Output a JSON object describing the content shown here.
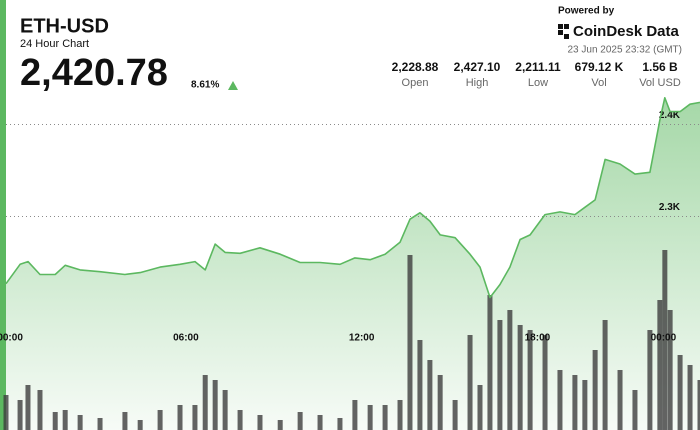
{
  "chart_data": {
    "type": "line",
    "title": "ETH-USD",
    "subtitle": "24 Hour Chart",
    "price": "2,420.78",
    "change": "8.61%",
    "powered_by": "Powered by",
    "brand": "CoinDesk Data",
    "timestamp": "23 Jun 2025 23:32 (GMT)",
    "stats": [
      {
        "value": "2,228.88",
        "label": "Open"
      },
      {
        "value": "2,427.10",
        "label": "High"
      },
      {
        "value": "2,211.11",
        "label": "Low"
      },
      {
        "value": "679.12 K",
        "label": "Vol"
      },
      {
        "value": "1.56 B",
        "label": "Vol USD"
      }
    ],
    "x": [
      -0.14,
      0.34,
      0.61,
      1.02,
      1.54,
      1.88,
      2.39,
      3.07,
      3.92,
      4.44,
      5.12,
      5.8,
      6.31,
      6.66,
      7.0,
      7.34,
      7.85,
      8.53,
      9.22,
      9.9,
      10.58,
      11.26,
      11.77,
      12.29,
      12.8,
      13.31,
      13.65,
      13.99,
      14.33,
      14.68,
      15.19,
      15.7,
      16.04,
      16.38,
      16.72,
      17.06,
      17.41,
      17.75,
      18.26,
      18.77,
      19.28,
      19.62,
      19.97,
      20.31,
      20.82,
      21.33,
      21.84,
      22.18,
      22.35,
      22.53,
      22.87,
      23.21,
      23.55
    ],
    "series": [
      {
        "color": "#5cb860",
        "values": [
          2227,
          2248,
          2251,
          2237,
          2237,
          2247,
          2242,
          2240,
          2237,
          2239,
          2245,
          2248,
          2251,
          2242,
          2270,
          2261,
          2260,
          2266,
          2259,
          2250,
          2250,
          2248,
          2255,
          2253,
          2259,
          2272,
          2297,
          2304,
          2295,
          2280,
          2277,
          2259,
          2245,
          2212,
          2226,
          2245,
          2275,
          2280,
          2302,
          2305,
          2302,
          2310,
          2318,
          2362,
          2357,
          2346,
          2348,
          2405,
          2429,
          2414,
          2414,
          2422,
          2424
        ]
      },
      {
        "color": "#3d3d3d",
        "axis": "y2",
        "values": [
          35,
          30,
          45,
          40,
          18,
          20,
          15,
          12,
          18,
          10,
          20,
          25,
          25,
          55,
          50,
          40,
          20,
          15,
          10,
          18,
          15,
          12,
          30,
          25,
          25,
          30,
          175,
          90,
          70,
          55,
          30,
          95,
          45,
          135,
          110,
          120,
          105,
          100,
          95,
          60,
          55,
          50,
          80,
          110,
          60,
          40,
          100,
          130,
          180,
          120,
          75,
          65,
          50
        ]
      }
    ],
    "xlim": [
      -0.14,
      23.55
    ],
    "xticks": [
      {
        "value": 0,
        "label": "00:00"
      },
      {
        "value": 6,
        "label": "06:00"
      },
      {
        "value": 12,
        "label": "12:00"
      },
      {
        "value": 18,
        "label": "18:00"
      },
      {
        "value": 22.3,
        "label": "00:00"
      }
    ],
    "ylim": [
      2068,
      2432
    ],
    "yticks": [
      {
        "value": 2300,
        "label": "2.3K"
      },
      {
        "value": 2400,
        "label": "2.4K"
      }
    ],
    "y2lim": [
      0,
      335
    ],
    "grid": true
  }
}
